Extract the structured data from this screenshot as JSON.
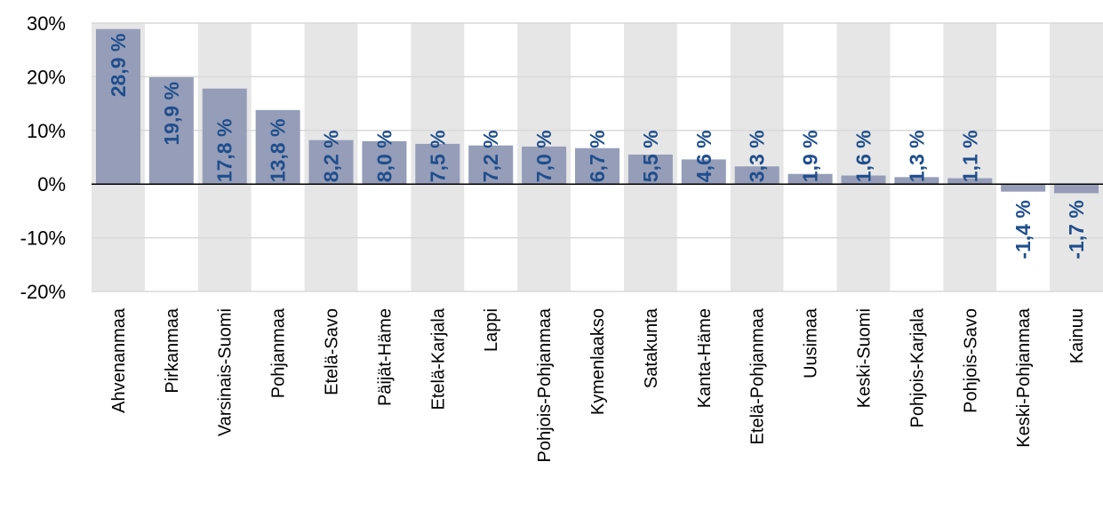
{
  "chart_data": {
    "type": "bar",
    "categories": [
      "Ahvenanmaa",
      "Pirkanmaa",
      "Varsinais-Suomi",
      "Pohjanmaa",
      "Etelä-Savo",
      "Päijät-Häme",
      "Etelä-Karjala",
      "Lappi",
      "Pohjois-Pohjanmaa",
      "Kymenlaakso",
      "Satakunta",
      "Kanta-Häme",
      "Etelä-Pohjanmaa",
      "Uusimaa",
      "Keski-Suomi",
      "Pohjois-Karjala",
      "Pohjois-Savo",
      "Keski-Pohjanmaa",
      "Kainuu"
    ],
    "values": [
      28.9,
      19.9,
      17.8,
      13.8,
      8.2,
      8.0,
      7.5,
      7.2,
      7.0,
      6.7,
      5.5,
      4.6,
      3.3,
      1.9,
      1.6,
      1.3,
      1.1,
      -1.4,
      -1.7
    ],
    "data_labels": [
      "28,9 %",
      "19,9 %",
      "17,8 %",
      "13,8 %",
      "8,2 %",
      "8,0 %",
      "7,5 %",
      "7,2 %",
      "7,0 %",
      "6,7 %",
      "5,5 %",
      "4,6 %",
      "3,3 %",
      "1,9 %",
      "1,6 %",
      "1,3 %",
      "1,1 %",
      "-1,4 %",
      "-1,7 %"
    ],
    "y_ticks": [
      {
        "value": 30,
        "label": "30%"
      },
      {
        "value": 20,
        "label": "20%"
      },
      {
        "value": 10,
        "label": "10%"
      },
      {
        "value": 0,
        "label": "0%"
      },
      {
        "value": -10,
        "label": "-10%"
      },
      {
        "value": -20,
        "label": "-20%"
      }
    ],
    "ylim": [
      -20,
      30
    ],
    "grid": true,
    "title": "",
    "xlabel": "",
    "ylabel": "",
    "colors": {
      "bar": "#959db8",
      "band": "#e6e6e6",
      "grid": "#d9d9d9",
      "label": "#1f4e8c",
      "zero_line": "#000000"
    }
  }
}
